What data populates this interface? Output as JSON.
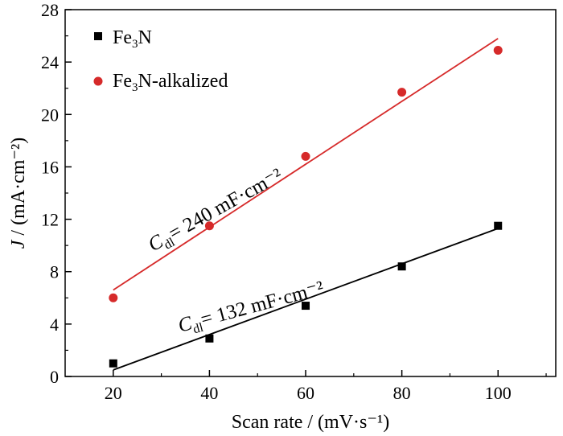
{
  "chart_data": {
    "type": "scatter",
    "xlabel": "Scan rate / (mV·s⁻¹)",
    "ylabel_main": "J",
    "ylabel_unit": " / (mA·cm⁻²)",
    "xlim": [
      10,
      112
    ],
    "ylim": [
      0,
      28
    ],
    "xticks": [
      20,
      40,
      60,
      80,
      100
    ],
    "yticks": [
      0,
      4,
      8,
      12,
      16,
      20,
      24,
      28
    ],
    "grid": false,
    "legend_position": "top-left",
    "series": [
      {
        "name": "Fe3N",
        "name_base": "Fe",
        "name_sub": "3",
        "name_rest": "N",
        "marker": "square",
        "color": "#000000",
        "x": [
          20,
          40,
          60,
          80,
          100
        ],
        "y": [
          1.0,
          2.9,
          5.4,
          8.4,
          11.5
        ],
        "fit_line": {
          "x": [
            20,
            100
          ],
          "y": [
            0.5,
            11.3
          ]
        },
        "annotation": {
          "c": "C",
          "sub": "dl",
          "rest": "= 132 mF·cm⁻²"
        }
      },
      {
        "name": "Fe3N-alkalized",
        "name_base": "Fe",
        "name_sub": "3",
        "name_rest": "N-alkalized",
        "marker": "circle",
        "color": "#d62a2a",
        "x": [
          20,
          40,
          60,
          80,
          100
        ],
        "y": [
          6.0,
          11.5,
          16.8,
          21.7,
          24.9
        ],
        "fit_line": {
          "x": [
            20,
            100
          ],
          "y": [
            6.6,
            25.8
          ]
        },
        "annotation": {
          "c": "C",
          "sub": "dl",
          "rest": "= 240 mF·cm⁻²"
        }
      }
    ]
  }
}
